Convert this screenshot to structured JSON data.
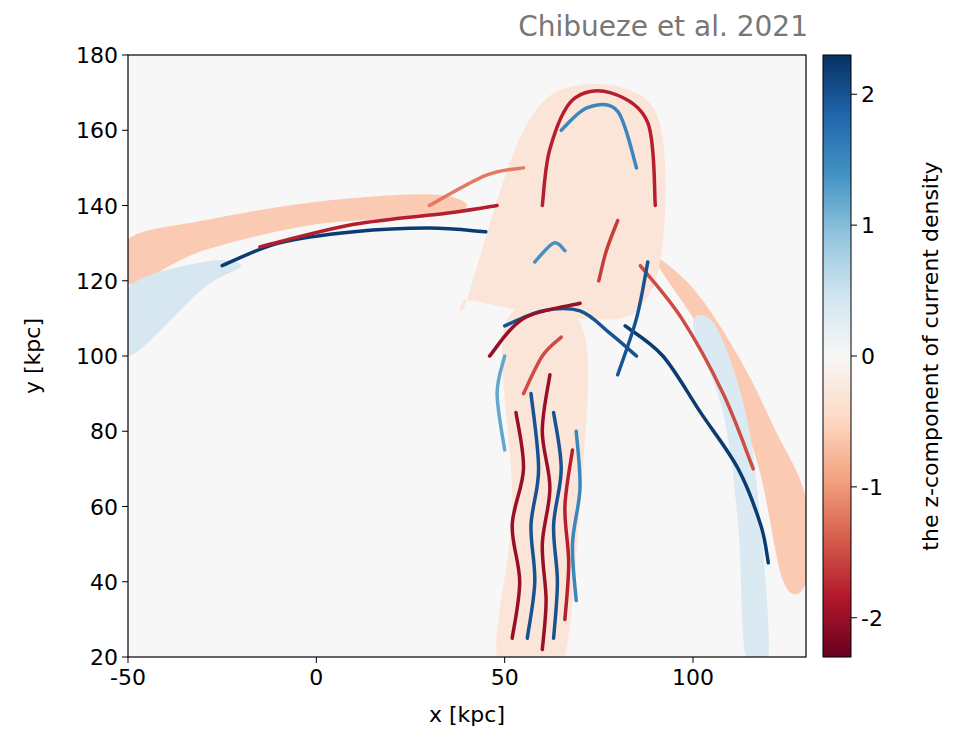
{
  "chart_data": {
    "type": "heatmap",
    "title": "Chibueze et al. 2021",
    "x_label": "x [kpc]",
    "y_label": "y [kpc]",
    "colorbar_label": "the z-component of current density",
    "xlim": [
      -50,
      130
    ],
    "ylim": [
      20,
      180
    ],
    "xticks": [
      -50,
      0,
      50,
      100
    ],
    "yticks": [
      20,
      40,
      60,
      80,
      100,
      120,
      140,
      160,
      180
    ],
    "colorbar_range": [
      -2.3,
      2.3
    ],
    "colorbar_ticks": [
      -2,
      -1,
      0,
      1,
      2
    ],
    "regions": [
      {
        "x": [
          -50,
          -30,
          0,
          30,
          40,
          30,
          0,
          -30,
          -50
        ],
        "y": [
          131,
          136,
          141,
          143,
          140,
          137,
          135,
          128,
          119
        ],
        "value": -0.6
      },
      {
        "x": [
          -50,
          -30,
          -20,
          -30,
          -50
        ],
        "y": [
          118,
          125,
          124,
          118,
          100
        ],
        "value": 0.4
      },
      {
        "x": [
          88,
          100,
          112,
          122,
          130,
          130,
          124,
          117,
          106,
          92
        ],
        "y": [
          128,
          118,
          100,
          80,
          62,
          40,
          40,
          72,
          100,
          122
        ],
        "value": -0.6
      },
      {
        "x": [
          100,
          108,
          112,
          114,
          120,
          118,
          114,
          106
        ],
        "y": [
          108,
          85,
          55,
          20,
          20,
          55,
          85,
          108
        ],
        "value": 0.35
      },
      {
        "x": [
          48,
          52,
          50,
          66,
          72,
          70,
          66,
          60
        ],
        "y": [
          20,
          60,
          108,
          112,
          100,
          60,
          20,
          20
        ],
        "value": -0.3
      },
      {
        "x": [
          40,
          55,
          70,
          90,
          92,
          85,
          70,
          55,
          40
        ],
        "y": [
          115,
          160,
          172,
          165,
          130,
          112,
          110,
          112,
          115
        ],
        "value": -0.3
      }
    ],
    "filaments": [
      {
        "x": [
          -25,
          -10,
          10,
          30,
          45
        ],
        "y": [
          124,
          130,
          133,
          134,
          133
        ],
        "value": 2.2
      },
      {
        "x": [
          -15,
          10,
          35,
          48
        ],
        "y": [
          129,
          135,
          138,
          140
        ],
        "value": -1.8
      },
      {
        "x": [
          82,
          92,
          102,
          112,
          118,
          120
        ],
        "y": [
          108,
          100,
          85,
          70,
          55,
          45
        ],
        "value": 2.2
      },
      {
        "x": [
          86,
          97,
          108,
          116
        ],
        "y": [
          124,
          110,
          90,
          70
        ],
        "value": -1.5
      },
      {
        "x": [
          50,
          60,
          70,
          78,
          85
        ],
        "y": [
          108,
          112,
          112,
          106,
          100
        ],
        "value": 2.0
      },
      {
        "x": [
          46,
          55,
          70
        ],
        "y": [
          100,
          110,
          114
        ],
        "value": -2.0
      },
      {
        "x": [
          60,
          62,
          68,
          78,
          88,
          90
        ],
        "y": [
          140,
          155,
          168,
          170,
          162,
          140
        ],
        "value": -1.8
      },
      {
        "x": [
          65,
          72,
          80,
          85
        ],
        "y": [
          160,
          166,
          165,
          150
        ],
        "value": 1.5
      },
      {
        "x": [
          30,
          45,
          55
        ],
        "y": [
          140,
          148,
          150
        ],
        "value": -1.2
      },
      {
        "x": [
          80,
          85,
          88
        ],
        "y": [
          95,
          110,
          125
        ],
        "value": 2.0
      },
      {
        "x": [
          75,
          77,
          80
        ],
        "y": [
          120,
          128,
          136
        ],
        "value": -1.6
      },
      {
        "x": [
          58,
          63,
          66
        ],
        "y": [
          125,
          130,
          128
        ],
        "value": 1.4
      },
      {
        "x": [
          52,
          54,
          52,
          55,
          53
        ],
        "y": [
          25,
          40,
          55,
          70,
          85
        ],
        "value": -2.0
      },
      {
        "x": [
          56,
          58,
          57,
          59,
          57
        ],
        "y": [
          25,
          40,
          55,
          70,
          90
        ],
        "value": 2.0
      },
      {
        "x": [
          60,
          61,
          60,
          62,
          60,
          62
        ],
        "y": [
          22,
          35,
          50,
          65,
          80,
          95
        ],
        "value": -2.0
      },
      {
        "x": [
          63,
          64,
          63,
          65,
          63
        ],
        "y": [
          25,
          40,
          55,
          70,
          85
        ],
        "value": 2.0
      },
      {
        "x": [
          66,
          67,
          66,
          68
        ],
        "y": [
          30,
          45,
          60,
          75
        ],
        "value": -1.8
      },
      {
        "x": [
          69,
          68,
          70,
          69
        ],
        "y": [
          35,
          50,
          65,
          80
        ],
        "value": 1.5
      },
      {
        "x": [
          55,
          60,
          65
        ],
        "y": [
          90,
          100,
          105
        ],
        "value": -1.5
      },
      {
        "x": [
          50,
          48,
          50
        ],
        "y": [
          75,
          90,
          100
        ],
        "value": 1.2
      }
    ]
  }
}
